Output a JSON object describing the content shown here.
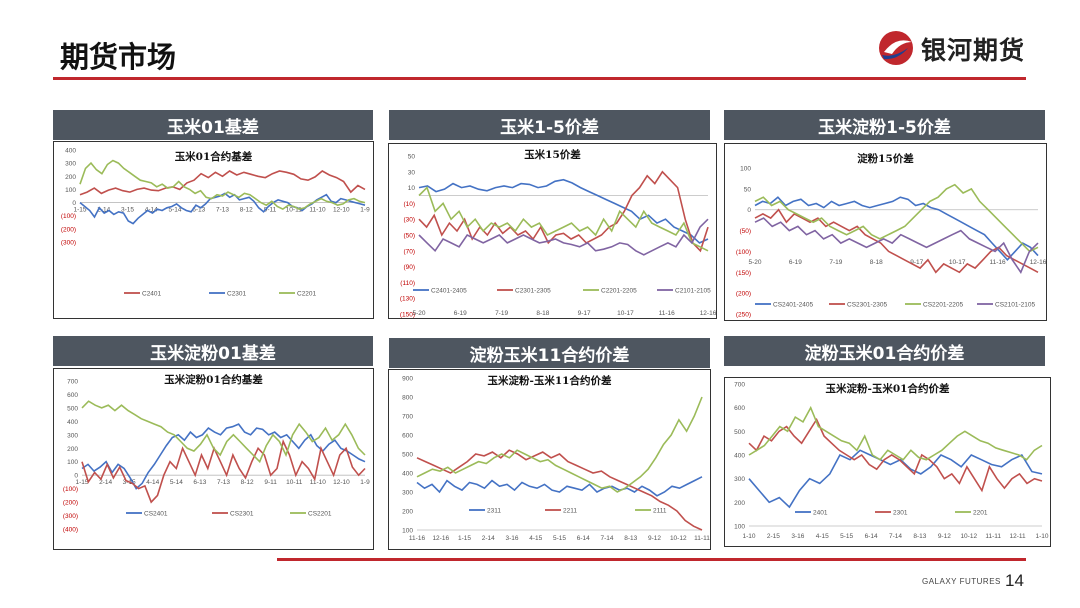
{
  "page": {
    "title": "期货市场",
    "brand_name": "银河期货",
    "footer_brand": "GALAXY FUTURES",
    "page_number": "14"
  },
  "colors": {
    "accent": "#c0272d",
    "header_bg": "#4e5660",
    "blue": "#4472c4",
    "red": "#c0504d",
    "green": "#9bbb59",
    "purple": "#8064a2"
  },
  "panels": [
    {
      "header": "玉米01基差"
    },
    {
      "header": "玉米1-5价差"
    },
    {
      "header": "玉米淀粉1-5价差"
    },
    {
      "header": "玉米淀粉01基差"
    },
    {
      "header": "淀粉玉米11合约价差"
    },
    {
      "header": "淀粉玉米01合约价差"
    }
  ],
  "chart_data": [
    {
      "type": "line",
      "title": "玉米01合约基差",
      "y_tick_labels": [
        "400",
        "300",
        "200",
        "100",
        "0",
        "(100)",
        "(200)",
        "(300)"
      ],
      "ylim": [
        -300,
        400
      ],
      "x_tick_labels": [
        "1-15",
        "2-14",
        "3-15",
        "4-14",
        "5-14",
        "6-13",
        "7-13",
        "8-12",
        "9-11",
        "10-11",
        "11-10",
        "12-10",
        "1-9"
      ],
      "series": [
        {
          "name": "C2401",
          "color": "red",
          "values": [
            60,
            80,
            110,
            70,
            95,
            110,
            90,
            80,
            100,
            110,
            95,
            90,
            110,
            120,
            100,
            150,
            170,
            220,
            190,
            230,
            200,
            240,
            210,
            230,
            215,
            200,
            190,
            220,
            240,
            230,
            215,
            180,
            170,
            195,
            240,
            210,
            190,
            160,
            80,
            130,
            100
          ]
        },
        {
          "name": "C2301",
          "color": "blue",
          "values": [
            0,
            -30,
            -60,
            -110,
            -40,
            -80,
            -60,
            -90,
            -70,
            -80,
            -140,
            -160,
            -120,
            -90,
            -60,
            -80,
            -50,
            -60,
            -40,
            -30,
            -10,
            -40,
            -60,
            -70,
            -20,
            -40,
            -10,
            30,
            40,
            50,
            70,
            40,
            60,
            20,
            30,
            40,
            10,
            -40,
            -70,
            -30,
            0,
            20,
            10,
            0,
            -30,
            -40,
            -60,
            -30,
            -10,
            20,
            40,
            60,
            10,
            0,
            30,
            20,
            10,
            0,
            -10,
            -20
          ]
        },
        {
          "name": "C2201",
          "color": "green",
          "values": [
            140,
            260,
            300,
            250,
            220,
            290,
            320,
            300,
            260,
            230,
            200,
            170,
            160,
            150,
            120,
            140,
            110,
            120,
            160,
            120,
            100,
            70,
            90,
            40,
            30,
            60,
            50,
            80,
            60,
            40,
            70,
            60,
            30,
            0,
            -20,
            10,
            -30,
            -50,
            -20,
            -30,
            -50,
            -40,
            -10,
            10,
            30,
            10,
            0,
            -20,
            -10,
            20,
            30,
            10,
            0
          ]
        }
      ]
    },
    {
      "type": "line",
      "title": "玉米15价差",
      "y_tick_labels": [
        "50",
        "30",
        "10",
        "(10)",
        "(30)",
        "(50)",
        "(70)",
        "(90)",
        "(110)",
        "(130)",
        "(150)"
      ],
      "ylim": [
        -150,
        50
      ],
      "x_tick_labels": [
        "5-20",
        "6-19",
        "7-19",
        "8-18",
        "9-17",
        "10-17",
        "11-16",
        "12-16"
      ],
      "series": [
        {
          "name": "C2401-2405",
          "color": "blue",
          "values": [
            10,
            12,
            5,
            8,
            15,
            10,
            12,
            8,
            6,
            10,
            12,
            10,
            15,
            14,
            10,
            12,
            18,
            20,
            16,
            10,
            5,
            0,
            -5,
            -10,
            -15,
            -20,
            -30,
            -25,
            -35,
            -30,
            -40,
            -45,
            -50,
            -60,
            -55
          ]
        },
        {
          "name": "C2301-2305",
          "color": "red",
          "values": [
            -30,
            -40,
            -25,
            -50,
            -35,
            -45,
            -30,
            -55,
            -40,
            -50,
            -35,
            -48,
            -40,
            -50,
            -45,
            -55,
            -40,
            -60,
            -50,
            -48,
            -55,
            -50,
            -60,
            -55,
            -50,
            -40,
            -35,
            -20,
            0,
            10,
            25,
            15,
            30,
            20,
            10,
            -30,
            -60,
            -70,
            -40
          ]
        },
        {
          "name": "C2201-2205",
          "color": "green",
          "values": [
            0,
            10,
            -20,
            -10,
            -30,
            -20,
            -40,
            -30,
            -45,
            -35,
            -40,
            -35,
            -45,
            -30,
            -40,
            -35,
            -50,
            -45,
            -40,
            -35,
            -45,
            -40,
            -50,
            -30,
            -45,
            -20,
            -30,
            -40,
            -20,
            -35,
            -40,
            -45,
            -50,
            -35,
            -60,
            -65,
            -70
          ]
        },
        {
          "name": "C2101-2105",
          "color": "purple",
          "values": [
            -50,
            -60,
            -70,
            -55,
            -60,
            -65,
            -50,
            -55,
            -60,
            -55,
            -50,
            -60,
            -55,
            -50,
            -55,
            -60,
            -58,
            -55,
            -60,
            -62,
            -65,
            -60,
            -70,
            -68,
            -65,
            -60,
            -62,
            -70,
            -75,
            -70,
            -65,
            -60,
            -65,
            -50,
            -60,
            -40,
            -30
          ]
        }
      ]
    },
    {
      "type": "line",
      "title": "淀粉15价差",
      "y_tick_labels": [
        "100",
        "50",
        "0",
        "(50)",
        "(100)",
        "(150)",
        "(200)",
        "(250)"
      ],
      "ylim": [
        -250,
        100
      ],
      "x_tick_labels": [
        "5-20",
        "6-19",
        "7-19",
        "8-18",
        "9-17",
        "10-17",
        "11-16",
        "12-16"
      ],
      "series": [
        {
          "name": "CS2401-2405",
          "color": "blue",
          "values": [
            10,
            20,
            15,
            30,
            10,
            20,
            25,
            10,
            15,
            5,
            20,
            10,
            15,
            20,
            10,
            5,
            10,
            15,
            20,
            30,
            25,
            10,
            15,
            5,
            0,
            -10,
            -20,
            -30,
            -40,
            -50,
            -60,
            -80,
            -100,
            -120,
            -100,
            -80,
            -90,
            -110
          ]
        },
        {
          "name": "CS2301-2305",
          "color": "red",
          "values": [
            -20,
            -10,
            -20,
            0,
            -30,
            -10,
            -20,
            -30,
            -20,
            -40,
            -30,
            -40,
            -50,
            -40,
            -60,
            -70,
            -80,
            -100,
            -110,
            -120,
            -130,
            -140,
            -120,
            -150,
            -130,
            -140,
            -150,
            -130,
            -140,
            -120,
            -100,
            -90,
            -110,
            -120,
            -130,
            -140,
            -150
          ]
        },
        {
          "name": "CS2201-2205",
          "color": "green",
          "values": [
            20,
            30,
            10,
            20,
            0,
            -10,
            -20,
            -30,
            -20,
            -40,
            -50,
            -60,
            -50,
            -40,
            -60,
            -70,
            -60,
            -50,
            -40,
            -20,
            0,
            20,
            30,
            50,
            60,
            40,
            50,
            20,
            0,
            -20,
            -40,
            -60,
            -80,
            -100,
            -90
          ]
        },
        {
          "name": "CS2101-2105",
          "color": "purple",
          "values": [
            -30,
            -20,
            -40,
            -30,
            -50,
            -40,
            -60,
            -50,
            -70,
            -60,
            -80,
            -70,
            -80,
            -90,
            -80,
            -70,
            -80,
            -60,
            -70,
            -80,
            -90,
            -80,
            -70,
            -60,
            -50,
            -70,
            -80,
            -90,
            -100,
            -80,
            -120,
            -150,
            -100,
            -80
          ]
        }
      ]
    },
    {
      "type": "line",
      "title": "玉米淀粉01合约基差",
      "y_tick_labels": [
        "700",
        "600",
        "500",
        "400",
        "300",
        "200",
        "100",
        "0",
        "(100)",
        "(200)",
        "(300)",
        "(400)"
      ],
      "ylim": [
        -400,
        700
      ],
      "x_tick_labels": [
        "1-15",
        "2-14",
        "3-15",
        "4-14",
        "5-14",
        "6-13",
        "7-13",
        "8-12",
        "9-11",
        "10-11",
        "11-10",
        "12-10",
        "1-9"
      ],
      "series": [
        {
          "name": "CS2401",
          "color": "blue",
          "values": [
            50,
            80,
            30,
            60,
            100,
            20,
            80,
            50,
            -20,
            -100,
            -60,
            20,
            80,
            150,
            220,
            280,
            300,
            260,
            320,
            280,
            300,
            350,
            320,
            300,
            350,
            360,
            380,
            320,
            300,
            350,
            340,
            300,
            320,
            280,
            300,
            250,
            200,
            260,
            300,
            220,
            180,
            230,
            260,
            200,
            180,
            150,
            120,
            100
          ]
        },
        {
          "name": "CS2301",
          "color": "red",
          "values": [
            100,
            -50,
            20,
            -30,
            80,
            -20,
            60,
            -40,
            -60,
            -100,
            -80,
            -200,
            -150,
            0,
            100,
            50,
            200,
            100,
            0,
            150,
            50,
            200,
            100,
            0,
            150,
            50,
            -20,
            100,
            200,
            150,
            0,
            50,
            250,
            150,
            0,
            100,
            50,
            -30,
            200,
            100,
            0,
            150,
            200,
            60,
            0,
            50
          ]
        },
        {
          "name": "CS2201",
          "color": "green",
          "values": [
            500,
            550,
            520,
            500,
            520,
            480,
            520,
            480,
            450,
            420,
            400,
            380,
            360,
            320,
            300,
            250,
            200,
            180,
            230,
            300,
            200,
            150,
            250,
            300,
            250,
            200,
            150,
            100,
            220,
            300,
            250,
            150,
            300,
            380,
            320,
            250,
            280,
            350,
            260,
            300,
            380,
            300,
            200,
            150
          ]
        }
      ]
    },
    {
      "type": "line",
      "title": "玉米淀粉-玉米11合约价差",
      "y_tick_labels": [
        "900",
        "800",
        "700",
        "600",
        "500",
        "400",
        "300",
        "200",
        "100"
      ],
      "ylim": [
        100,
        900
      ],
      "x_tick_labels": [
        "11-16",
        "12-16",
        "1-15",
        "2-14",
        "3-16",
        "4-15",
        "5-15",
        "6-14",
        "7-14",
        "8-13",
        "9-12",
        "10-12",
        "11-11"
      ],
      "series": [
        {
          "name": "2311",
          "color": "blue",
          "values": [
            350,
            320,
            340,
            300,
            360,
            330,
            310,
            350,
            340,
            320,
            360,
            330,
            340,
            310,
            350,
            330,
            320,
            340,
            310,
            300,
            330,
            320,
            310,
            340,
            300,
            320,
            330,
            310,
            320,
            300,
            330,
            310,
            280,
            300,
            330,
            320,
            340,
            360,
            380
          ]
        },
        {
          "name": "2211",
          "color": "red",
          "values": [
            480,
            460,
            440,
            420,
            400,
            430,
            460,
            500,
            490,
            510,
            480,
            520,
            500,
            470,
            490,
            510,
            480,
            500,
            460,
            440,
            420,
            400,
            410,
            380,
            360,
            340,
            320,
            300,
            280,
            250,
            230,
            200,
            150,
            120,
            100
          ]
        },
        {
          "name": "2111",
          "color": "green",
          "values": [
            380,
            400,
            420,
            410,
            430,
            400,
            420,
            440,
            460,
            450,
            480,
            500,
            480,
            520,
            500,
            480,
            460,
            470,
            440,
            420,
            400,
            380,
            360,
            340,
            320,
            330,
            300,
            320,
            350,
            380,
            420,
            480,
            550,
            600,
            680,
            620,
            700,
            800
          ]
        }
      ]
    },
    {
      "type": "line",
      "title": "玉米淀粉-玉米01合约价差",
      "y_tick_labels": [
        "700",
        "600",
        "500",
        "400",
        "300",
        "200",
        "100"
      ],
      "ylim": [
        100,
        700
      ],
      "x_tick_labels": [
        "1-10",
        "2-15",
        "3-16",
        "4-15",
        "5-15",
        "6-14",
        "7-14",
        "8-13",
        "9-12",
        "10-12",
        "11-11",
        "12-11",
        "1-10"
      ],
      "series": [
        {
          "name": "2401",
          "color": "blue",
          "values": [
            300,
            250,
            200,
            220,
            180,
            250,
            300,
            280,
            320,
            400,
            380,
            420,
            400,
            380,
            360,
            380,
            340,
            320,
            350,
            400,
            380,
            350,
            400,
            380,
            360,
            350,
            380,
            400,
            330,
            320
          ]
        },
        {
          "name": "2301",
          "color": "red",
          "values": [
            450,
            420,
            480,
            460,
            500,
            520,
            480,
            450,
            500,
            550,
            480,
            450,
            420,
            400,
            380,
            400,
            360,
            340,
            380,
            400,
            380,
            350,
            320,
            400,
            380,
            350,
            300,
            320,
            280,
            350,
            300,
            250,
            350,
            300,
            260,
            300,
            320,
            280,
            300,
            290
          ]
        },
        {
          "name": "2201",
          "color": "green",
          "values": [
            400,
            420,
            440,
            480,
            520,
            500,
            560,
            540,
            600,
            520,
            500,
            480,
            460,
            450,
            420,
            480,
            400,
            380,
            420,
            400,
            380,
            420,
            390,
            380,
            400,
            420,
            450,
            480,
            500,
            480,
            460,
            450,
            430,
            420,
            410,
            400,
            380,
            420,
            440
          ]
        }
      ]
    }
  ]
}
